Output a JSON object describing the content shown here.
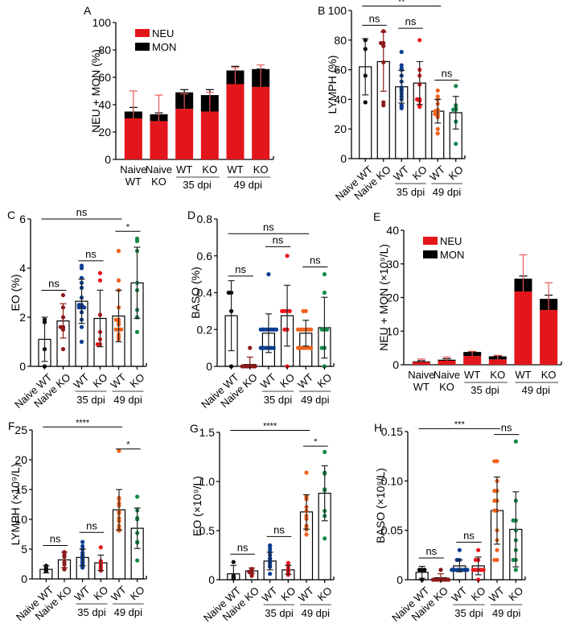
{
  "colors": {
    "neu": "#e3161b",
    "mon": "#000000",
    "naive_wt": "#000000",
    "naive_ko": "#8b1a1a",
    "wt35": "#0a3d91",
    "ko35": "#e8151b",
    "wt49": "#f0611a",
    "ko49": "#13884a"
  },
  "group_labels": {
    "naive_wt": "Naive WT",
    "naive_ko": "Naive KO",
    "wt": "WT",
    "ko": "KO",
    "naive": "Naive",
    "wt_word": "WT",
    "ko_word": "KO",
    "dpi35": "35 dpi",
    "dpi49": "49 dpi"
  },
  "chart_data": [
    {
      "panel": "A",
      "type": "bar",
      "stacked": true,
      "ylabel": "NEU + MON (%)",
      "ylim": [
        0,
        100
      ],
      "yticks": [
        "0",
        "20",
        "40",
        "60",
        "80",
        "100"
      ],
      "categories": [
        "Naive WT",
        "Naive KO",
        "35 dpi WT",
        "35 dpi KO",
        "49 dpi WT",
        "49 dpi KO"
      ],
      "legend": [
        "NEU",
        "MON"
      ],
      "legend_position": "top-left",
      "series": [
        {
          "name": "NEU",
          "values": [
            30,
            28,
            37,
            35,
            55,
            53
          ],
          "err": [
            50,
            47,
            48,
            49,
            67,
            69
          ]
        },
        {
          "name": "MON",
          "values": [
            5,
            5,
            12,
            12,
            10,
            13
          ],
          "err": [
            38,
            34,
            51,
            51,
            68,
            66
          ]
        }
      ],
      "annotations": []
    },
    {
      "panel": "B",
      "type": "scatter",
      "ylabel": "LYMPH (%)",
      "ylim": [
        0,
        100
      ],
      "yticks": [
        "0",
        "20",
        "40",
        "60",
        "80",
        "100"
      ],
      "categories": [
        "Naive WT",
        "Naive KO",
        "35 dpi WT",
        "35 dpi KO",
        "49 dpi WT",
        "49 dpi KO"
      ],
      "means": [
        62,
        65.5,
        48.5,
        51,
        32,
        31
      ],
      "sd": [
        19,
        20,
        11,
        14.5,
        8,
        11
      ],
      "points": [
        [
          80,
          74,
          56,
          38
        ],
        [
          86,
          78,
          78,
          76,
          65,
          38,
          36
        ],
        [
          72,
          63,
          61,
          60,
          56,
          52,
          48,
          47,
          46,
          44,
          42,
          40,
          36,
          35,
          34
        ],
        [
          80,
          60,
          56,
          50,
          40,
          40,
          39,
          36,
          35
        ],
        [
          46,
          42,
          40,
          37,
          33,
          32,
          32,
          31,
          30,
          30,
          29,
          28,
          20,
          17
        ],
        [
          49,
          36,
          34,
          33,
          33,
          25,
          10
        ]
      ],
      "annotations": [
        {
          "label": "**",
          "from": 0,
          "to": 4,
          "y": 103
        },
        {
          "label": "ns",
          "from": 0,
          "to": 1,
          "y": 90
        },
        {
          "label": "ns",
          "from": 2,
          "to": 3,
          "y": 88
        },
        {
          "label": "ns",
          "from": 4,
          "to": 5,
          "y": 53
        }
      ]
    },
    {
      "panel": "C",
      "type": "scatter",
      "ylabel": "EO (%)",
      "ylim": [
        0,
        6
      ],
      "yticks": [
        "0",
        "2",
        "4",
        "6"
      ],
      "categories": [
        "Naive WT",
        "Naive KO",
        "35 dpi WT",
        "35 dpi KO",
        "49 dpi WT",
        "49 dpi KO"
      ],
      "means": [
        1.1,
        1.85,
        2.65,
        1.95,
        2.05,
        3.4
      ],
      "sd": [
        0.9,
        0.7,
        0.9,
        1.15,
        1.05,
        1.45
      ],
      "points": [
        [
          1.8,
          1.9,
          0.7,
          0.0
        ],
        [
          2.9,
          2.4,
          2.0,
          1.6,
          1.6,
          1.5,
          0.7
        ],
        [
          4.1,
          4.0,
          3.6,
          3.4,
          3.2,
          2.8,
          2.5,
          2.5,
          2.4,
          2.4,
          2.4,
          2.2,
          1.9,
          1.6,
          1.0
        ],
        [
          3.8,
          3.5,
          2.1,
          1.4,
          1.1,
          0.9,
          0.9
        ],
        [
          4.7,
          3.5,
          3.1,
          2.4,
          1.9,
          1.9,
          1.8,
          1.7,
          1.5,
          1.5,
          1.5,
          1.3,
          1.2,
          1.1
        ],
        [
          5.2,
          5.1,
          4.7,
          3.4,
          3.1,
          2.3,
          2.0,
          1.4
        ]
      ],
      "annotations": [
        {
          "label": "ns",
          "from": 0,
          "to": 4,
          "y": 6.0
        },
        {
          "label": "*",
          "from": 4,
          "to": 5,
          "y": 5.5
        },
        {
          "label": "ns",
          "from": 2,
          "to": 3,
          "y": 4.3
        },
        {
          "label": "ns",
          "from": 0,
          "to": 1,
          "y": 3.1
        }
      ]
    },
    {
      "panel": "D",
      "type": "scatter",
      "ylabel": "BASO (%)",
      "ylim": [
        0,
        0.8
      ],
      "yticks": [
        "0",
        "0.2",
        "0.4",
        "0.6",
        "0.8"
      ],
      "categories": [
        "Naive WT",
        "Naive KO",
        "35 dpi WT",
        "35 dpi KO",
        "49 dpi WT",
        "49 dpi KO"
      ],
      "means": [
        0.275,
        0.01,
        0.18,
        0.275,
        0.18,
        0.21
      ],
      "sd": [
        0.19,
        0.04,
        0.105,
        0.165,
        0.07,
        0.165
      ],
      "points": [
        [
          0.4,
          0.4,
          0.3,
          0.0
        ],
        [
          0.1,
          0.0,
          0.0,
          0.0,
          0.0,
          0.0,
          0.0
        ],
        [
          0.5,
          0.2,
          0.2,
          0.2,
          0.2,
          0.2,
          0.2,
          0.2,
          0.1,
          0.1,
          0.1,
          0.1,
          0.1,
          0.1
        ],
        [
          0.6,
          0.3,
          0.3,
          0.3,
          0.3,
          0.2,
          0.2,
          0.0
        ],
        [
          0.3,
          0.3,
          0.2,
          0.2,
          0.2,
          0.2,
          0.2,
          0.2,
          0.1,
          0.1,
          0.1,
          0.1,
          0.1,
          0.1
        ],
        [
          0.5,
          0.4,
          0.2,
          0.2,
          0.2,
          0.1,
          0.1,
          0.0
        ]
      ],
      "annotations": [
        {
          "label": "ns",
          "from": 0,
          "to": 4,
          "y": 0.72
        },
        {
          "label": "ns",
          "from": 2,
          "to": 3,
          "y": 0.65
        },
        {
          "label": "ns",
          "from": 0,
          "to": 1,
          "y": 0.49
        },
        {
          "label": "ns",
          "from": 4,
          "to": 5,
          "y": 0.54
        }
      ]
    },
    {
      "panel": "E",
      "type": "bar",
      "stacked": true,
      "ylabel": "NEU + MON (×10⁹/L)",
      "ylim": [
        0,
        40
      ],
      "yticks": [
        "0",
        "10",
        "20",
        "30",
        "40"
      ],
      "categories": [
        "Naive WT",
        "Naive KO",
        "35 dpi WT",
        "35 dpi KO",
        "49 dpi WT",
        "49 dpi KO"
      ],
      "legend": [
        "NEU",
        "MON"
      ],
      "legend_position": "top-left",
      "series": [
        {
          "name": "NEU",
          "values": [
            0.8,
            1.2,
            2.6,
            1.6,
            21.8,
            16.3
          ],
          "err": [
            1.7,
            2.3,
            4.0,
            2.8,
            32.7,
            24.4
          ]
        },
        {
          "name": "MON",
          "values": [
            0.2,
            0.3,
            1.2,
            0.9,
            3.8,
            3.3
          ],
          "err": [
            1.2,
            1.8,
            3.9,
            2.6,
            26.4,
            20.7
          ]
        }
      ],
      "annotations": []
    },
    {
      "panel": "F",
      "type": "scatter",
      "ylabel": "LYMPH (×10⁹/L)",
      "ylim": [
        0,
        25
      ],
      "yticks": [
        "0",
        "5",
        "10",
        "15",
        "20",
        "25"
      ],
      "categories": [
        "Naive WT",
        "Naive KO",
        "35 dpi WT",
        "35 dpi KO",
        "49 dpi WT",
        "49 dpi KO"
      ],
      "means": [
        1.6,
        3.2,
        3.6,
        2.7,
        11.6,
        8.5
      ],
      "sd": [
        0.6,
        1.3,
        1.4,
        1.3,
        3.4,
        3.4
      ],
      "points": [
        [
          2.2,
          1.8,
          1.4,
          1.3
        ],
        [
          4.5,
          4.4,
          4.0,
          3.7,
          2.8,
          2.4,
          1.7,
          1.6
        ],
        [
          6.2,
          5.5,
          5.0,
          4.4,
          4.0,
          3.8,
          3.5,
          3.3,
          3.0,
          2.8,
          2.6,
          2.4,
          2.2,
          1.9
        ],
        [
          5.3,
          3.0,
          2.6,
          2.4,
          2.0,
          1.9,
          1.5,
          1.4
        ],
        [
          21.5,
          13.6,
          13.4,
          12.7,
          12.3,
          11.3,
          11.0,
          10.2,
          9.7,
          8.9,
          8.4,
          8.1
        ],
        [
          13.8,
          11.5,
          10.2,
          10.0,
          7.7,
          6.2,
          6.1,
          3.1
        ]
      ],
      "annotations": [
        {
          "label": "****",
          "from": 0,
          "to": 4,
          "y": 25.5
        },
        {
          "label": "*",
          "from": 4,
          "to": 5,
          "y": 21.8
        },
        {
          "label": "ns",
          "from": 2,
          "to": 3,
          "y": 7.8
        },
        {
          "label": "ns",
          "from": 0,
          "to": 1,
          "y": 5.6
        }
      ]
    },
    {
      "panel": "G",
      "type": "scatter",
      "ylabel": "EO (×10⁹/L)",
      "ylim": [
        0,
        1.5
      ],
      "yticks": [
        "0",
        "0.5",
        "1.0",
        "1.5"
      ],
      "categories": [
        "Naive WT",
        "Naive KO",
        "35 dpi WT",
        "35 dpi KO",
        "49 dpi WT",
        "49 dpi KO"
      ],
      "means": [
        0.06,
        0.09,
        0.19,
        0.1,
        0.69,
        0.88
      ],
      "sd": [
        0.085,
        0.03,
        0.09,
        0.045,
        0.175,
        0.28
      ],
      "points": [
        [
          0.18,
          0.04,
          0.03,
          0.02,
          0.01
        ],
        [
          0.11,
          0.1,
          0.09,
          0.08,
          0.08,
          0.07,
          0.04
        ],
        [
          0.35,
          0.34,
          0.31,
          0.28,
          0.25,
          0.22,
          0.2,
          0.19,
          0.18,
          0.17,
          0.15,
          0.13,
          0.06
        ],
        [
          0.17,
          0.15,
          0.12,
          0.1,
          0.09,
          0.08,
          0.06,
          0.05
        ],
        [
          1.09,
          0.85,
          0.84,
          0.82,
          0.74,
          0.7,
          0.65,
          0.62,
          0.55,
          0.54,
          0.51,
          0.46
        ],
        [
          1.3,
          1.09,
          1.08,
          0.92,
          0.91,
          0.7,
          0.65,
          0.42
        ]
      ],
      "annotations": [
        {
          "label": "****",
          "from": 0,
          "to": 4,
          "y": 1.52
        },
        {
          "label": "*",
          "from": 4,
          "to": 5,
          "y": 1.36
        },
        {
          "label": "ns",
          "from": 2,
          "to": 3,
          "y": 0.44
        },
        {
          "label": "ns",
          "from": 0,
          "to": 1,
          "y": 0.26
        }
      ]
    },
    {
      "panel": "H",
      "type": "scatter",
      "ylabel": "BASO (×10⁹/L)",
      "ylim": [
        0,
        0.15
      ],
      "yticks": [
        "0",
        "0.05",
        "0.10",
        "0.15"
      ],
      "categories": [
        "Naive WT",
        "Naive KO",
        "35 dpi WT",
        "35 dpi KO",
        "49 dpi WT",
        "49 dpi KO"
      ],
      "means": [
        0.0075,
        0.002,
        0.014,
        0.014,
        0.07,
        0.051
      ],
      "sd": [
        0.006,
        0.004,
        0.006,
        0.009,
        0.034,
        0.038
      ],
      "points": [
        [
          0.01,
          0.01,
          0.01,
          0.0
        ],
        [
          0.01,
          0.0,
          0.0,
          0.0,
          0.0,
          0.0,
          0.0,
          0.0
        ],
        [
          0.03,
          0.02,
          0.02,
          0.01,
          0.01,
          0.01,
          0.01,
          0.01,
          0.01,
          0.01
        ],
        [
          0.03,
          0.02,
          0.02,
          0.01,
          0.01,
          0.01,
          0.01,
          0.01,
          0.0
        ],
        [
          0.12,
          0.12,
          0.1,
          0.09,
          0.09,
          0.08,
          0.08,
          0.07,
          0.07,
          0.05,
          0.04,
          0.03,
          0.02,
          0.02
        ],
        [
          0.14,
          0.08,
          0.06,
          0.06,
          0.05,
          0.04,
          0.03,
          0.02,
          0.02,
          0.01
        ]
      ],
      "annotations": [
        {
          "label": "***",
          "from": 0,
          "to": 4,
          "y": 0.153
        },
        {
          "label": "ns",
          "from": 4,
          "to": 5,
          "y": 0.147
        },
        {
          "label": "ns",
          "from": 2,
          "to": 3,
          "y": 0.038
        },
        {
          "label": "ns",
          "from": 0,
          "to": 1,
          "y": 0.022
        }
      ]
    }
  ]
}
